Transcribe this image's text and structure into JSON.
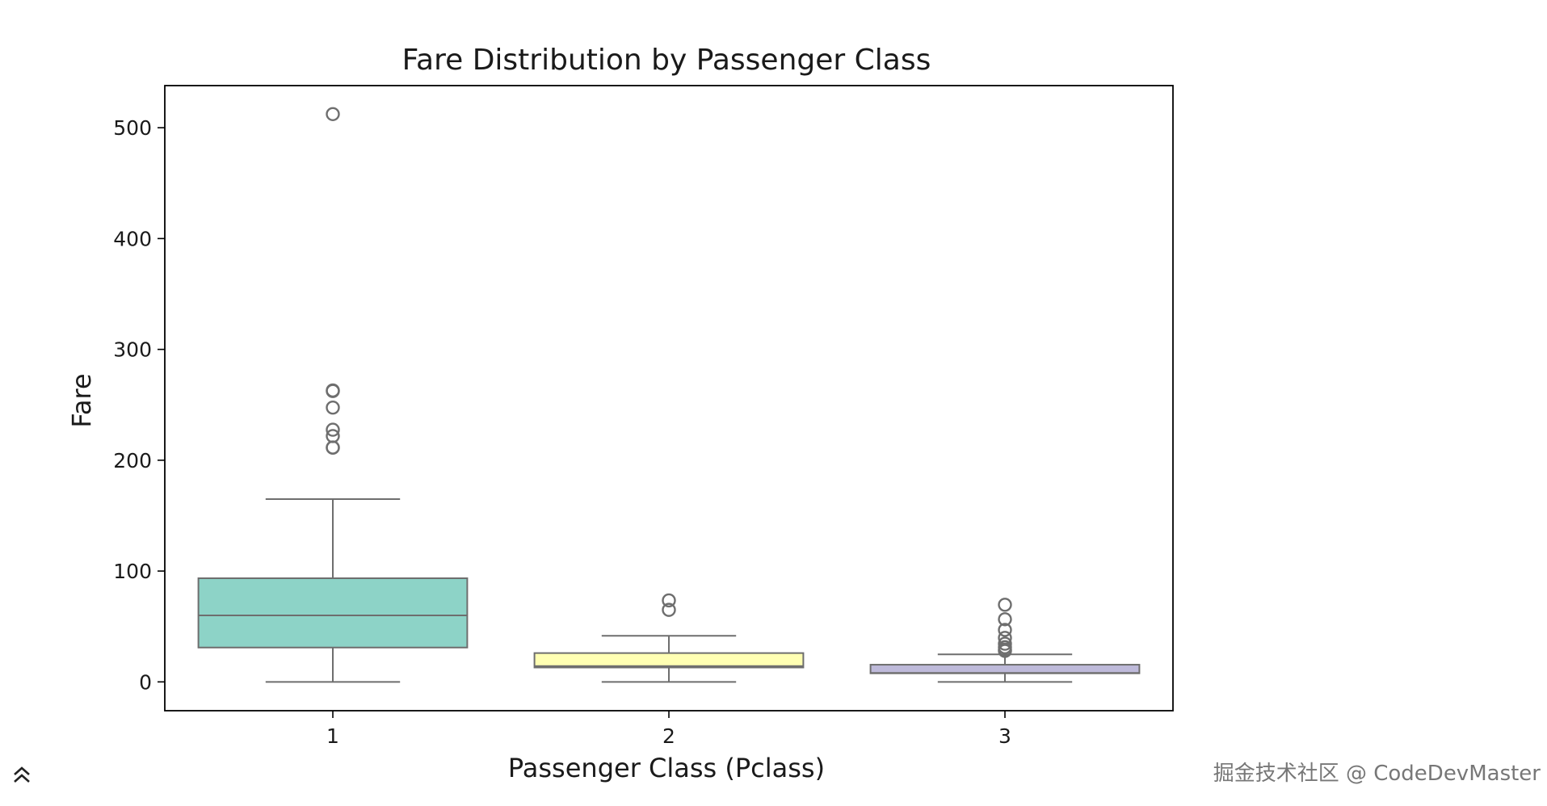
{
  "chart_data": {
    "type": "box",
    "title": "Fare Distribution by Passenger Class",
    "xlabel": "Passenger Class (Pclass)",
    "ylabel": "Fare",
    "categories": [
      "1",
      "2",
      "3"
    ],
    "ylim": [
      -26,
      538
    ],
    "yticks": [
      0,
      100,
      200,
      300,
      400,
      500
    ],
    "grid": false,
    "legend": "none",
    "boxes": [
      {
        "category": "1",
        "whisker_low": 0,
        "q1": 31,
        "median": 60,
        "q3": 93.5,
        "whisker_high": 164.9,
        "fliers": [
          211.3,
          211.5,
          221.8,
          227.5,
          247.5,
          262.4,
          263,
          512.3
        ],
        "color": "#8dd3c7"
      },
      {
        "category": "2",
        "whisker_low": 0,
        "q1": 13,
        "median": 14.25,
        "q3": 26,
        "whisker_high": 41.6,
        "fliers": [
          65,
          73.5
        ],
        "color": "#ffffb3"
      },
      {
        "category": "3",
        "whisker_low": 0,
        "q1": 7.75,
        "median": 8.05,
        "q3": 15.5,
        "whisker_high": 24.8,
        "fliers": [
          27.9,
          29.1,
          31.3,
          34.4,
          39.7,
          46.9,
          56.5,
          69.6
        ],
        "color": "#bebada"
      }
    ]
  },
  "watermark": "掘金技术社区 @ CodeDevMaster",
  "colors": {
    "line": "#6e6e6e",
    "axis": "#000000",
    "text": "#1a1a1a"
  },
  "icons": {
    "scroll_top": "double-chevron-up-icon"
  }
}
